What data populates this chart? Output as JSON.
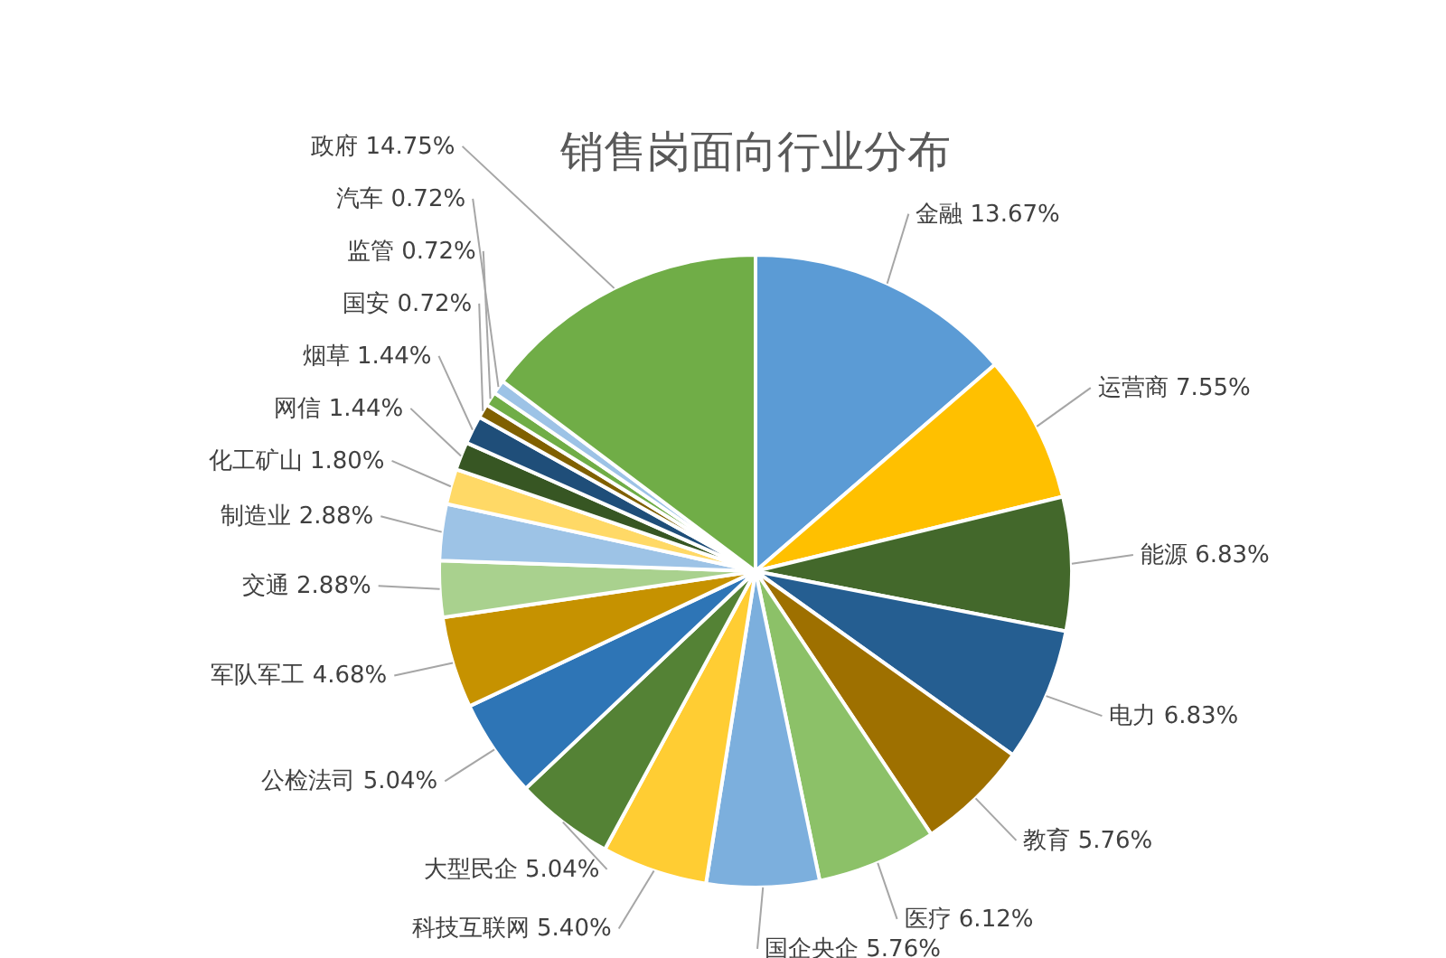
{
  "chart_data": {
    "type": "pie",
    "title": "销售岗面向行业分布",
    "categories": [
      "金融",
      "运营商",
      "能源",
      "电力",
      "教育",
      "医疗",
      "国企央企",
      "科技互联网",
      "大型民企",
      "公检法司",
      "军队军工",
      "交通",
      "制造业",
      "化工矿山",
      "网信",
      "烟草",
      "国安",
      "监管",
      "汽车",
      "政府"
    ],
    "values": [
      13.67,
      7.55,
      6.83,
      6.83,
      5.76,
      6.12,
      5.76,
      5.4,
      5.04,
      5.04,
      4.68,
      2.88,
      2.88,
      1.8,
      1.44,
      1.44,
      0.72,
      0.72,
      0.72,
      14.75
    ],
    "value_labels": [
      "13.67%",
      "7.55%",
      "6.83%",
      "6.83%",
      "5.76%",
      "6.12%",
      "5.76%",
      "5.40%",
      "5.04%",
      "5.04%",
      "4.68%",
      "2.88%",
      "2.88%",
      "1.80%",
      "1.44%",
      "1.44%",
      "0.72%",
      "0.72%",
      "0.72%",
      "14.75%"
    ],
    "colors": [
      "#5b9bd5",
      "#ffc000",
      "#43682b",
      "#255e91",
      "#9e7000",
      "#8cc168",
      "#7cafdd",
      "#ffcd33",
      "#548235",
      "#2e75b6",
      "#c69200",
      "#a9d18e",
      "#9dc3e6",
      "#ffd966",
      "#375623",
      "#1f4e79",
      "#806000",
      "#70ad47",
      "#9dc3e6",
      "#70ad47"
    ]
  }
}
